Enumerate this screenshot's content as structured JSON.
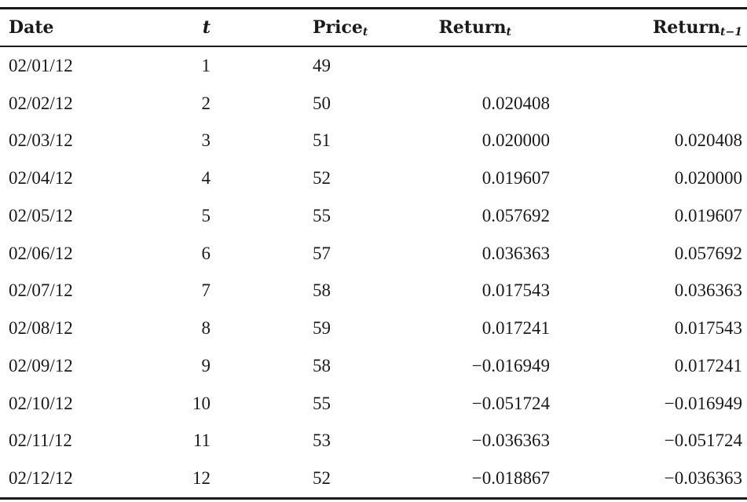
{
  "table": {
    "headers": {
      "date": "Date",
      "t": "t",
      "price": "Price",
      "price_sub": "t",
      "return": "Return",
      "return_sub": "t",
      "return_lag": "Return",
      "return_lag_sub": "t−1"
    },
    "rows": [
      {
        "date": "02/01/12",
        "t": "1",
        "price": "49",
        "return": "",
        "return_lag": ""
      },
      {
        "date": "02/02/12",
        "t": "2",
        "price": "50",
        "return": "0.020408",
        "return_lag": ""
      },
      {
        "date": "02/03/12",
        "t": "3",
        "price": "51",
        "return": "0.020000",
        "return_lag": "0.020408"
      },
      {
        "date": "02/04/12",
        "t": "4",
        "price": "52",
        "return": "0.019607",
        "return_lag": "0.020000"
      },
      {
        "date": "02/05/12",
        "t": "5",
        "price": "55",
        "return": "0.057692",
        "return_lag": "0.019607"
      },
      {
        "date": "02/06/12",
        "t": "6",
        "price": "57",
        "return": "0.036363",
        "return_lag": "0.057692"
      },
      {
        "date": "02/07/12",
        "t": "7",
        "price": "58",
        "return": "0.017543",
        "return_lag": "0.036363"
      },
      {
        "date": "02/08/12",
        "t": "8",
        "price": "59",
        "return": "0.017241",
        "return_lag": "0.017543"
      },
      {
        "date": "02/09/12",
        "t": "9",
        "price": "58",
        "return": "−0.016949",
        "return_lag": "0.017241"
      },
      {
        "date": "02/10/12",
        "t": "10",
        "price": "55",
        "return": "−0.051724",
        "return_lag": "−0.016949"
      },
      {
        "date": "02/11/12",
        "t": "11",
        "price": "53",
        "return": "−0.036363",
        "return_lag": "−0.051724"
      },
      {
        "date": "02/12/12",
        "t": "12",
        "price": "52",
        "return": "−0.018867",
        "return_lag": "−0.036363"
      }
    ]
  }
}
